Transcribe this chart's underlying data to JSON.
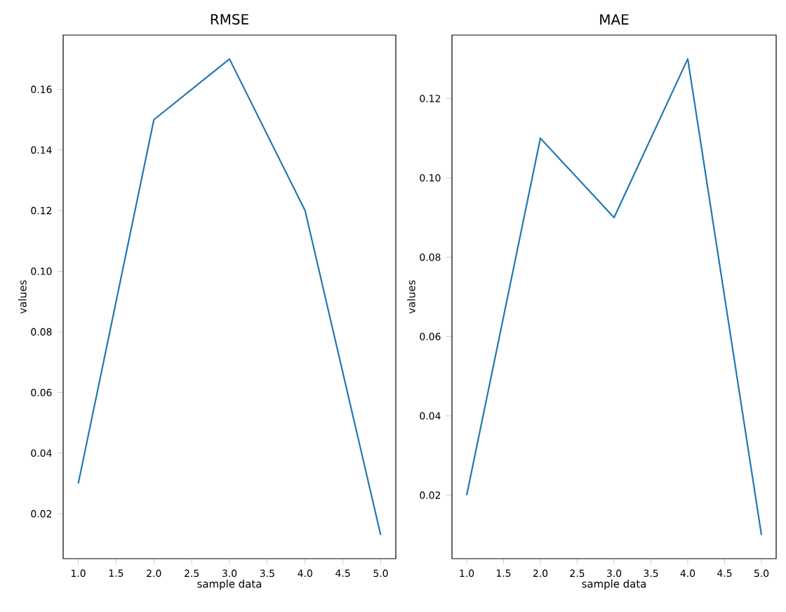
{
  "chart_data": [
    {
      "type": "line",
      "title": "RMSE",
      "xlabel": "sample data",
      "ylabel": "values",
      "x": [
        1,
        2,
        3,
        4,
        5
      ],
      "values": [
        0.03,
        0.15,
        0.17,
        0.12,
        0.013
      ],
      "color": "#1f77b4",
      "xlim": [
        0.8,
        5.2
      ],
      "ylim": [
        0.0052,
        0.1779
      ],
      "xticks": [
        {
          "value": 1,
          "label": "1.0"
        },
        {
          "value": 1.5,
          "label": "1.5"
        },
        {
          "value": 2,
          "label": "2.0"
        },
        {
          "value": 2.5,
          "label": "2.5"
        },
        {
          "value": 3,
          "label": "3.0"
        },
        {
          "value": 3.5,
          "label": "3.5"
        },
        {
          "value": 4,
          "label": "4.0"
        },
        {
          "value": 4.5,
          "label": "4.5"
        },
        {
          "value": 5,
          "label": "5.0"
        }
      ],
      "yticks": [
        0.02,
        0.04,
        0.06,
        0.08,
        {
          "value": 0.1,
          "label": "0.10"
        },
        0.12,
        0.14,
        0.16
      ]
    },
    {
      "type": "line",
      "title": "MAE",
      "xlabel": "sample data",
      "ylabel": "values",
      "x": [
        1,
        2,
        3,
        4,
        5
      ],
      "values": [
        0.02,
        0.11,
        0.09,
        0.13,
        0.01
      ],
      "color": "#1f77b4",
      "xlim": [
        0.8,
        5.2
      ],
      "ylim": [
        0.004,
        0.136
      ],
      "xticks": [
        {
          "value": 1,
          "label": "1.0"
        },
        {
          "value": 1.5,
          "label": "1.5"
        },
        {
          "value": 2,
          "label": "2.0"
        },
        {
          "value": 2.5,
          "label": "2.5"
        },
        {
          "value": 3,
          "label": "3.0"
        },
        {
          "value": 3.5,
          "label": "3.5"
        },
        {
          "value": 4,
          "label": "4.0"
        },
        {
          "value": 4.5,
          "label": "4.5"
        },
        {
          "value": 5,
          "label": "5.0"
        }
      ],
      "yticks": [
        0.02,
        0.04,
        0.06,
        0.08,
        {
          "value": 0.1,
          "label": "0.10"
        },
        0.12
      ]
    }
  ]
}
